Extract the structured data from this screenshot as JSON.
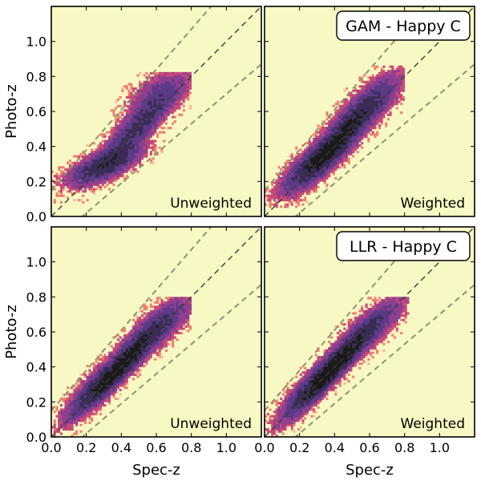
{
  "figure": {
    "colors": {
      "background": "#f8f8c4",
      "frame": "#000000",
      "guide_line": "#8e9471",
      "identity_line": "#3a3a3a",
      "colormap": [
        "#fbb4a0",
        "#f07f70",
        "#c94a78",
        "#8f3f8f",
        "#5c3a86",
        "#3a2c55",
        "#1a1a1a"
      ]
    }
  },
  "chart_data": [
    {
      "type": "heatmap",
      "title": "",
      "corner_label": "Unweighted",
      "xlabel": "",
      "ylabel": "Photo-z",
      "xlim": [
        0.0,
        1.2
      ],
      "ylim": [
        0.0,
        1.2
      ],
      "xticks": [],
      "yticks": [
        "0.0",
        "0.2",
        "0.4",
        "0.6",
        "0.8",
        "1.0"
      ],
      "reference_lines": [
        {
          "name": "identity",
          "slope": 1,
          "intercept": 0.0
        },
        {
          "name": "upper-bound",
          "slope": 1.15,
          "intercept": 0.15
        },
        {
          "name": "lower-bound",
          "slope": 0.85,
          "intercept": -0.15
        }
      ],
      "density_model": {
        "components": [
          {
            "weight": 0.6,
            "mean_x": 0.3,
            "mean_y": 0.29,
            "slope": 0.35,
            "sx": 0.13,
            "sy": 0.05
          },
          {
            "weight": 0.55,
            "mean_x": 0.5,
            "mean_y": 0.52,
            "slope": 0.9,
            "sx": 0.13,
            "sy": 0.07
          },
          {
            "weight": 0.22,
            "mean_x": 0.62,
            "mean_y": 0.72,
            "slope": 0.3,
            "sx": 0.12,
            "sy": 0.07
          }
        ],
        "x_range": [
          0.0,
          0.8
        ],
        "y_range": [
          0.07,
          0.82
        ]
      }
    },
    {
      "type": "heatmap",
      "title": "GAM - Happy C",
      "corner_label": "Weighted",
      "xlabel": "",
      "ylabel": "",
      "xlim": [
        0.0,
        1.2
      ],
      "ylim": [
        0.0,
        1.2
      ],
      "xticks": [],
      "yticks": [],
      "reference_lines": [
        {
          "name": "identity",
          "slope": 1,
          "intercept": 0.0
        },
        {
          "name": "upper-bound",
          "slope": 1.15,
          "intercept": 0.15
        },
        {
          "name": "lower-bound",
          "slope": 0.85,
          "intercept": -0.15
        }
      ],
      "density_model": {
        "components": [
          {
            "weight": 0.55,
            "mean_x": 0.28,
            "mean_y": 0.3,
            "slope": 0.7,
            "sx": 0.12,
            "sy": 0.06
          },
          {
            "weight": 0.7,
            "mean_x": 0.45,
            "mean_y": 0.47,
            "slope": 1.0,
            "sx": 0.14,
            "sy": 0.07
          },
          {
            "weight": 0.25,
            "mean_x": 0.62,
            "mean_y": 0.66,
            "slope": 0.6,
            "sx": 0.12,
            "sy": 0.08
          }
        ],
        "x_range": [
          0.0,
          0.8
        ],
        "y_range": [
          0.05,
          0.86
        ]
      }
    },
    {
      "type": "heatmap",
      "title": "",
      "corner_label": "Unweighted",
      "xlabel": "Spec-z",
      "ylabel": "Photo-z",
      "xlim": [
        0.0,
        1.2
      ],
      "ylim": [
        0.0,
        1.2
      ],
      "xticks": [
        "0.0",
        "0.2",
        "0.4",
        "0.6",
        "0.8",
        "1.0"
      ],
      "yticks": [
        "0.0",
        "0.2",
        "0.4",
        "0.6",
        "0.8",
        "1.0"
      ],
      "reference_lines": [
        {
          "name": "identity",
          "slope": 1,
          "intercept": 0.0
        },
        {
          "name": "upper-bound",
          "slope": 1.15,
          "intercept": 0.15
        },
        {
          "name": "lower-bound",
          "slope": 0.85,
          "intercept": -0.15
        }
      ],
      "density_model": {
        "components": [
          {
            "weight": 0.45,
            "mean_x": 0.25,
            "mean_y": 0.28,
            "slope": 0.9,
            "sx": 0.12,
            "sy": 0.06
          },
          {
            "weight": 0.8,
            "mean_x": 0.4,
            "mean_y": 0.4,
            "slope": 1.0,
            "sx": 0.12,
            "sy": 0.05
          },
          {
            "weight": 0.45,
            "mean_x": 0.6,
            "mean_y": 0.62,
            "slope": 0.7,
            "sx": 0.13,
            "sy": 0.07
          }
        ],
        "x_range": [
          0.0,
          0.8
        ],
        "y_range": [
          0.0,
          0.8
        ]
      }
    },
    {
      "type": "heatmap",
      "title": "LLR - Happy C",
      "corner_label": "Weighted",
      "xlabel": "Spec-z",
      "ylabel": "",
      "xlim": [
        0.0,
        1.2
      ],
      "ylim": [
        0.0,
        1.2
      ],
      "xticks": [
        "0.0",
        "0.2",
        "0.4",
        "0.6",
        "0.8",
        "1.0"
      ],
      "yticks": [],
      "reference_lines": [
        {
          "name": "identity",
          "slope": 1,
          "intercept": 0.0
        },
        {
          "name": "upper-bound",
          "slope": 1.15,
          "intercept": 0.15
        },
        {
          "name": "lower-bound",
          "slope": 0.85,
          "intercept": -0.15
        }
      ],
      "density_model": {
        "components": [
          {
            "weight": 0.45,
            "mean_x": 0.25,
            "mean_y": 0.27,
            "slope": 0.95,
            "sx": 0.12,
            "sy": 0.06
          },
          {
            "weight": 0.85,
            "mean_x": 0.4,
            "mean_y": 0.4,
            "slope": 1.0,
            "sx": 0.12,
            "sy": 0.05
          },
          {
            "weight": 0.4,
            "mean_x": 0.6,
            "mean_y": 0.62,
            "slope": 0.75,
            "sx": 0.13,
            "sy": 0.07
          }
        ],
        "x_range": [
          0.0,
          0.82
        ],
        "y_range": [
          0.0,
          0.8
        ]
      }
    }
  ]
}
